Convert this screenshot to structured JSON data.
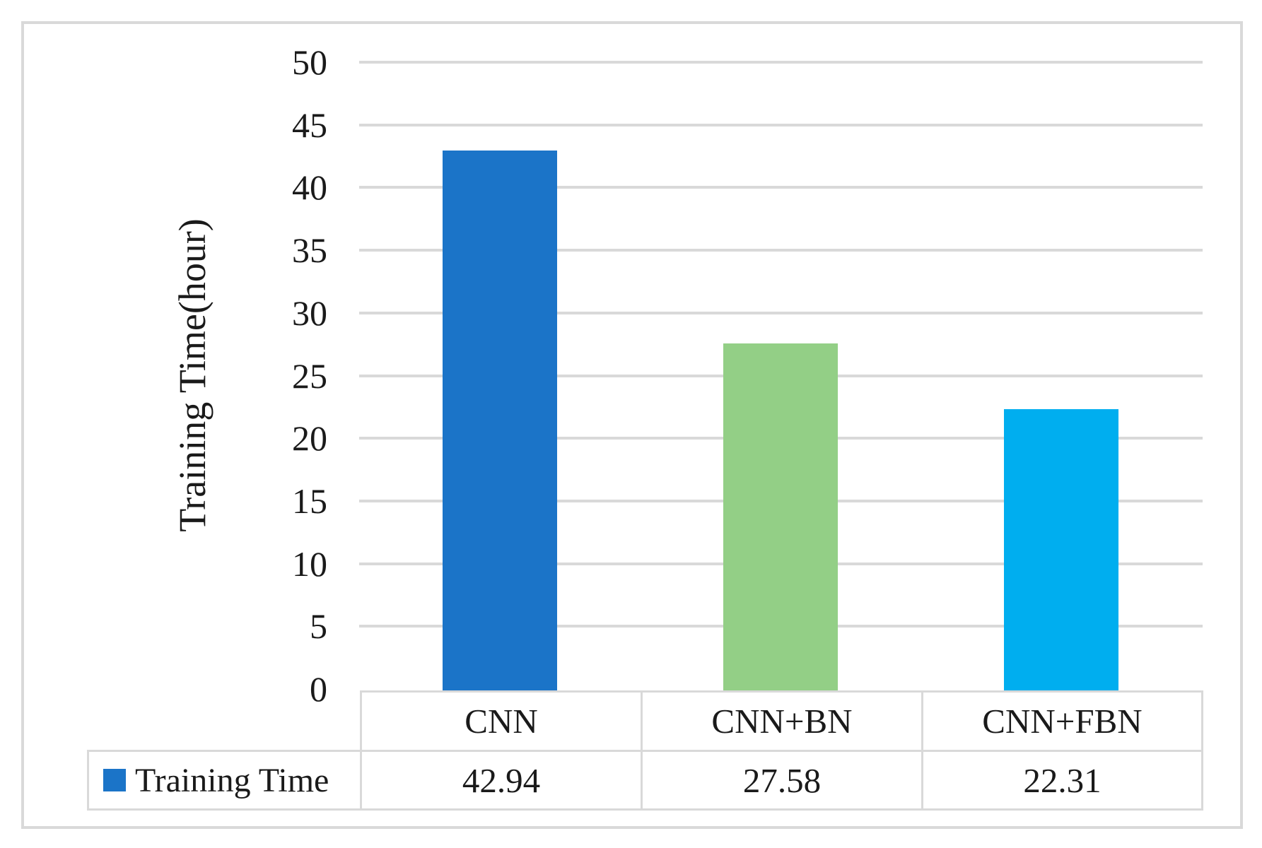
{
  "figure": {
    "background_color": "#ffffff",
    "frame_color": "#d9d9d9",
    "gridline_color": "#d9d9d9",
    "text_color": "#1a1a1a"
  },
  "legend": {
    "label": "Training Time",
    "marker_color": "#1b74c8"
  },
  "chart_data": {
    "type": "bar",
    "title": "",
    "xlabel": "",
    "ylabel": "Training Time(hour)",
    "categories": [
      "CNN",
      "CNN+BN",
      "CNN+FBN"
    ],
    "series": [
      {
        "name": "Training Time",
        "values": [
          42.94,
          27.58,
          22.31
        ]
      }
    ],
    "values_display": [
      "42.94",
      "27.58",
      "22.31"
    ],
    "bar_colors": [
      "#1b74c8",
      "#93cf86",
      "#00aeef"
    ],
    "ylim": [
      0,
      50
    ],
    "y_ticks": [
      0,
      5,
      10,
      15,
      20,
      25,
      30,
      35,
      40,
      45,
      50
    ],
    "grid": true,
    "legend_position": "bottom-left-table"
  }
}
